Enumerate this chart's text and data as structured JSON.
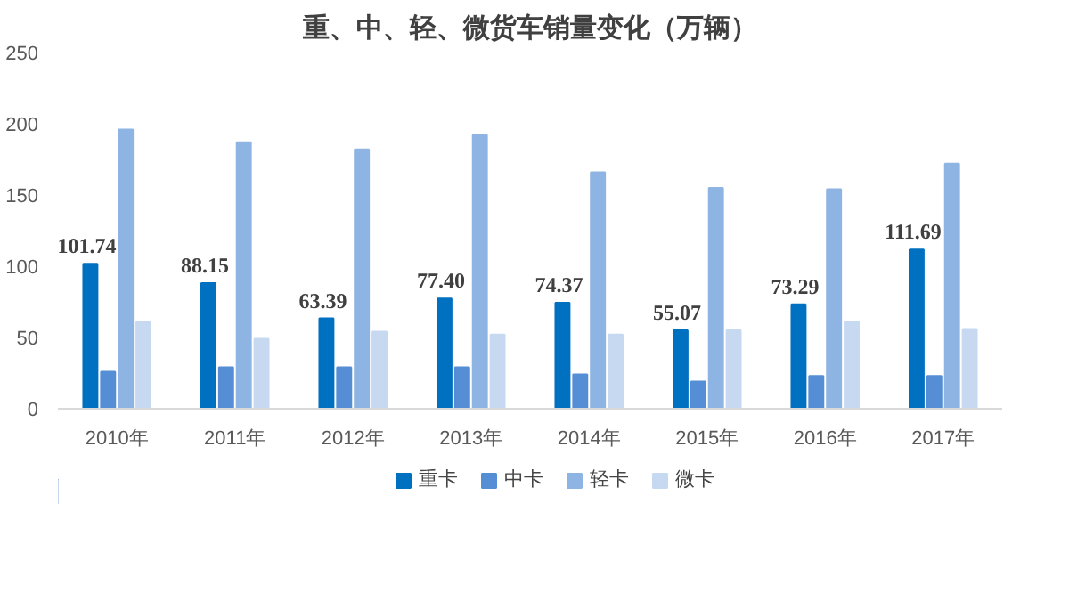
{
  "chart_data": {
    "type": "bar",
    "title": "重、中、轻、微货车销量变化（万辆）",
    "categories": [
      "2010年",
      "2011年",
      "2012年",
      "2013年",
      "2014年",
      "2015年",
      "2016年",
      "2017年"
    ],
    "series": [
      {
        "name": "重卡",
        "color": "#0070c0",
        "values": [
          101.74,
          88.15,
          63.39,
          77.4,
          74.37,
          55.07,
          73.29,
          111.69
        ],
        "value_labels": [
          "101.74",
          "88.15",
          "63.39",
          "77.40",
          "74.37",
          "55.07",
          "73.29",
          "111.69"
        ]
      },
      {
        "name": "中卡",
        "color": "#558ed5",
        "values": [
          26,
          29,
          29,
          29,
          24,
          19,
          23,
          23
        ]
      },
      {
        "name": "轻卡",
        "color": "#8eb4e3",
        "values": [
          196,
          187,
          182,
          192,
          166,
          155,
          154,
          172
        ]
      },
      {
        "name": "微卡",
        "color": "#c6d9f1",
        "values": [
          61,
          49,
          54,
          52,
          52,
          55,
          61,
          56
        ]
      }
    ],
    "ylim": [
      0,
      250
    ],
    "yticks": [
      0,
      50,
      100,
      150,
      200,
      250
    ],
    "grid": false,
    "legend": "bottom"
  }
}
